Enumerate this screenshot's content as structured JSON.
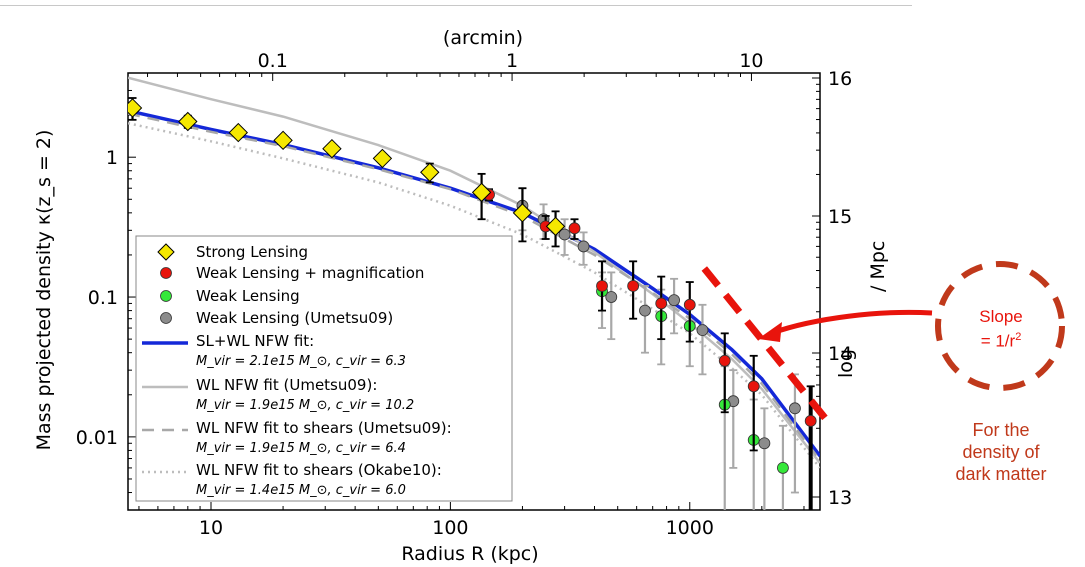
{
  "chart_data": {
    "type": "scatter",
    "xlabel": "Radius R (kpc)",
    "ylabel": "Mass projected density κ(z_s = 2)",
    "top_axis_label": "(arcmin)",
    "right_axis_label_visible": "log",
    "right_axis_label_unit": "/ Mpc",
    "x_scale": "log",
    "y_scale": "log",
    "xlim": [
      4.5,
      3500
    ],
    "ylim": [
      0.003,
      4.0
    ],
    "x_ticks": [
      {
        "value": 10,
        "label": "10"
      },
      {
        "value": 100,
        "label": "100"
      },
      {
        "value": 1000,
        "label": "1000"
      }
    ],
    "y_ticks": [
      {
        "value": 0.01,
        "label": "0.01"
      },
      {
        "value": 0.1,
        "label": "0.1"
      },
      {
        "value": 1,
        "label": "1"
      }
    ],
    "top_ticks": [
      {
        "value": 0.1,
        "label": "0.1"
      },
      {
        "value": 1,
        "label": "1"
      },
      {
        "value": 10,
        "label": "10"
      }
    ],
    "right_ticks": [
      {
        "value": 13,
        "label": "13"
      },
      {
        "value": 14,
        "label": "14"
      },
      {
        "value": 15,
        "label": "15"
      },
      {
        "value": 16,
        "label": "16"
      }
    ],
    "legend_position": "lower-left",
    "legend": [
      {
        "label": "Strong Lensing"
      },
      {
        "label": "Weak Lensing + magnification"
      },
      {
        "label": "Weak Lensing"
      },
      {
        "label": "Weak Lensing (Umetsu09)"
      },
      {
        "label": "SL+WL NFW fit:",
        "params": "M_vir = 2.1e15 M_⊙,  c_vir = 6.3"
      },
      {
        "label": "WL NFW fit (Umetsu09):",
        "params": "M_vir = 1.9e15 M_⊙,  c_vir = 10.2"
      },
      {
        "label": "WL NFW fit to shears (Umetsu09):",
        "params": "M_vir = 1.9e15 M_⊙,  c_vir = 6.4"
      },
      {
        "label": "WL NFW fit to shears (Okabe10):",
        "params": "M_vir = 1.4e15 M_⊙,  c_vir = 6.0"
      }
    ],
    "series": [
      {
        "name": "Strong Lensing",
        "color": "#f5e800",
        "marker": "diamond",
        "points": [
          {
            "x": 4.7,
            "y": 2.25,
            "err": [
              0.4,
              0.4
            ]
          },
          {
            "x": 8,
            "y": 1.8,
            "err": [
              0.18,
              0.18
            ]
          },
          {
            "x": 13,
            "y": 1.5,
            "err": [
              0.12,
              0.12
            ]
          },
          {
            "x": 20,
            "y": 1.32,
            "err": [
              0.1,
              0.1
            ]
          },
          {
            "x": 32,
            "y": 1.15,
            "err": [
              0.08,
              0.08
            ]
          },
          {
            "x": 52,
            "y": 0.98,
            "err": [
              0.07,
              0.07
            ]
          },
          {
            "x": 82,
            "y": 0.78,
            "err": [
              0.12,
              0.12
            ]
          },
          {
            "x": 135,
            "y": 0.56,
            "err": [
              0.2,
              0.2
            ]
          },
          {
            "x": 200,
            "y": 0.4,
            "err": [
              0.15,
              0.2
            ]
          },
          {
            "x": 275,
            "y": 0.32,
            "err": [
              0.09,
              0.09
            ]
          }
        ]
      },
      {
        "name": "Weak Lensing + magnification",
        "color": "#e8140c",
        "marker": "circle",
        "points": [
          {
            "x": 145,
            "y": 0.54,
            "err": [
              0.05,
              0.05
            ]
          },
          {
            "x": 250,
            "y": 0.32,
            "err": [
              0.06,
              0.06
            ]
          },
          {
            "x": 330,
            "y": 0.31,
            "err": [
              0.05,
              0.05
            ]
          },
          {
            "x": 430,
            "y": 0.12,
            "err": [
              0.04,
              0.06
            ]
          },
          {
            "x": 580,
            "y": 0.12,
            "err": [
              0.05,
              0.06
            ]
          },
          {
            "x": 760,
            "y": 0.09,
            "err": [
              0.04,
              0.05
            ]
          },
          {
            "x": 1000,
            "y": 0.088,
            "err": [
              0.04,
              0.04
            ]
          },
          {
            "x": 1400,
            "y": 0.035,
            "err": [
              0.02,
              0.02
            ]
          },
          {
            "x": 1850,
            "y": 0.023,
            "err": [
              0.015,
              0.015
            ]
          },
          {
            "x": 3200,
            "y": 0.013,
            "err": [
              0.01,
              0.01
            ]
          }
        ]
      },
      {
        "name": "Weak Lensing",
        "color": "#35e83a",
        "marker": "circle",
        "points": [
          {
            "x": 430,
            "y": 0.11,
            "err": [
              0.05,
              0.04
            ]
          },
          {
            "x": 760,
            "y": 0.073,
            "err": [
              0.04,
              0.04
            ]
          },
          {
            "x": 1000,
            "y": 0.062,
            "err": [
              0.03,
              0.03
            ]
          },
          {
            "x": 1400,
            "y": 0.017,
            "err": [
              0.015,
              0.015
            ]
          },
          {
            "x": 1850,
            "y": 0.0095,
            "err": [
              0.009,
              0.009
            ]
          },
          {
            "x": 2450,
            "y": 0.006,
            "err": [
              0.006,
              0.006
            ]
          }
        ]
      },
      {
        "name": "Weak Lensing (Umetsu09)",
        "color": "#8c8c8c",
        "marker": "circle",
        "points": [
          {
            "x": 200,
            "y": 0.45,
            "err": [
              0.15,
              0.15
            ]
          },
          {
            "x": 245,
            "y": 0.36,
            "err": [
              0.1,
              0.1
            ]
          },
          {
            "x": 300,
            "y": 0.28,
            "err": [
              0.08,
              0.08
            ]
          },
          {
            "x": 360,
            "y": 0.23,
            "err": [
              0.06,
              0.06
            ]
          },
          {
            "x": 470,
            "y": 0.1,
            "err": [
              0.05,
              0.05
            ]
          },
          {
            "x": 650,
            "y": 0.08,
            "err": [
              0.04,
              0.04
            ]
          },
          {
            "x": 860,
            "y": 0.095,
            "err": [
              0.04,
              0.04
            ]
          },
          {
            "x": 1130,
            "y": 0.058,
            "err": [
              0.03,
              0.03
            ]
          },
          {
            "x": 1520,
            "y": 0.018,
            "err": [
              0.012,
              0.012
            ]
          },
          {
            "x": 2050,
            "y": 0.009,
            "err": [
              0.007,
              0.007
            ]
          },
          {
            "x": 2750,
            "y": 0.016,
            "err": [
              0.012,
              0.012
            ]
          }
        ]
      }
    ],
    "curves": [
      {
        "name": "SL+WL NFW fit",
        "color": "#1428d8",
        "style": "solid",
        "points": [
          [
            4.5,
            2.15
          ],
          [
            10,
            1.58
          ],
          [
            20,
            1.23
          ],
          [
            50,
            0.84
          ],
          [
            100,
            0.6
          ],
          [
            200,
            0.4
          ],
          [
            400,
            0.22
          ],
          [
            700,
            0.115
          ],
          [
            1000,
            0.075
          ],
          [
            1500,
            0.042
          ],
          [
            2000,
            0.026
          ],
          [
            3500,
            0.0073
          ]
        ]
      },
      {
        "name": "WL NFW fit (Umetsu09)",
        "color": "#bdbdbd",
        "style": "solid",
        "points": [
          [
            4.5,
            3.7
          ],
          [
            10,
            2.6
          ],
          [
            20,
            1.95
          ],
          [
            50,
            1.22
          ],
          [
            100,
            0.8
          ],
          [
            200,
            0.45
          ],
          [
            400,
            0.21
          ],
          [
            700,
            0.105
          ],
          [
            1000,
            0.065
          ],
          [
            1500,
            0.036
          ],
          [
            2000,
            0.022
          ],
          [
            3500,
            0.0065
          ]
        ]
      },
      {
        "name": "WL NFW fit to shears (Umetsu09)",
        "color": "#a8a8a8",
        "style": "dashed",
        "points": [
          [
            4.5,
            2.05
          ],
          [
            10,
            1.52
          ],
          [
            20,
            1.2
          ],
          [
            50,
            0.82
          ],
          [
            100,
            0.59
          ],
          [
            200,
            0.38
          ],
          [
            400,
            0.2
          ],
          [
            700,
            0.107
          ],
          [
            1000,
            0.07
          ],
          [
            1500,
            0.039
          ],
          [
            2000,
            0.024
          ],
          [
            3500,
            0.0068
          ]
        ]
      },
      {
        "name": "WL NFW fit to shears (Okabe10)",
        "color": "#bdbdbd",
        "style": "dotted",
        "points": [
          [
            4.5,
            1.75
          ],
          [
            10,
            1.3
          ],
          [
            20,
            0.98
          ],
          [
            50,
            0.66
          ],
          [
            100,
            0.45
          ],
          [
            200,
            0.28
          ],
          [
            400,
            0.15
          ],
          [
            700,
            0.082
          ],
          [
            1000,
            0.055
          ],
          [
            1500,
            0.031
          ],
          [
            2000,
            0.02
          ],
          [
            3500,
            0.006
          ]
        ]
      }
    ],
    "slope_line": {
      "color": "#e8140c",
      "style": "dashed",
      "points": [
        [
          1150,
          0.16
        ],
        [
          3500,
          0.0135
        ]
      ]
    }
  },
  "annotation": {
    "slope_line1": "Slope",
    "slope_line2": "= 1/r",
    "slope_sup": "2",
    "note_line1": "For the",
    "note_line2": "density of",
    "note_line3": "dark matter",
    "color": "#c0391b"
  }
}
